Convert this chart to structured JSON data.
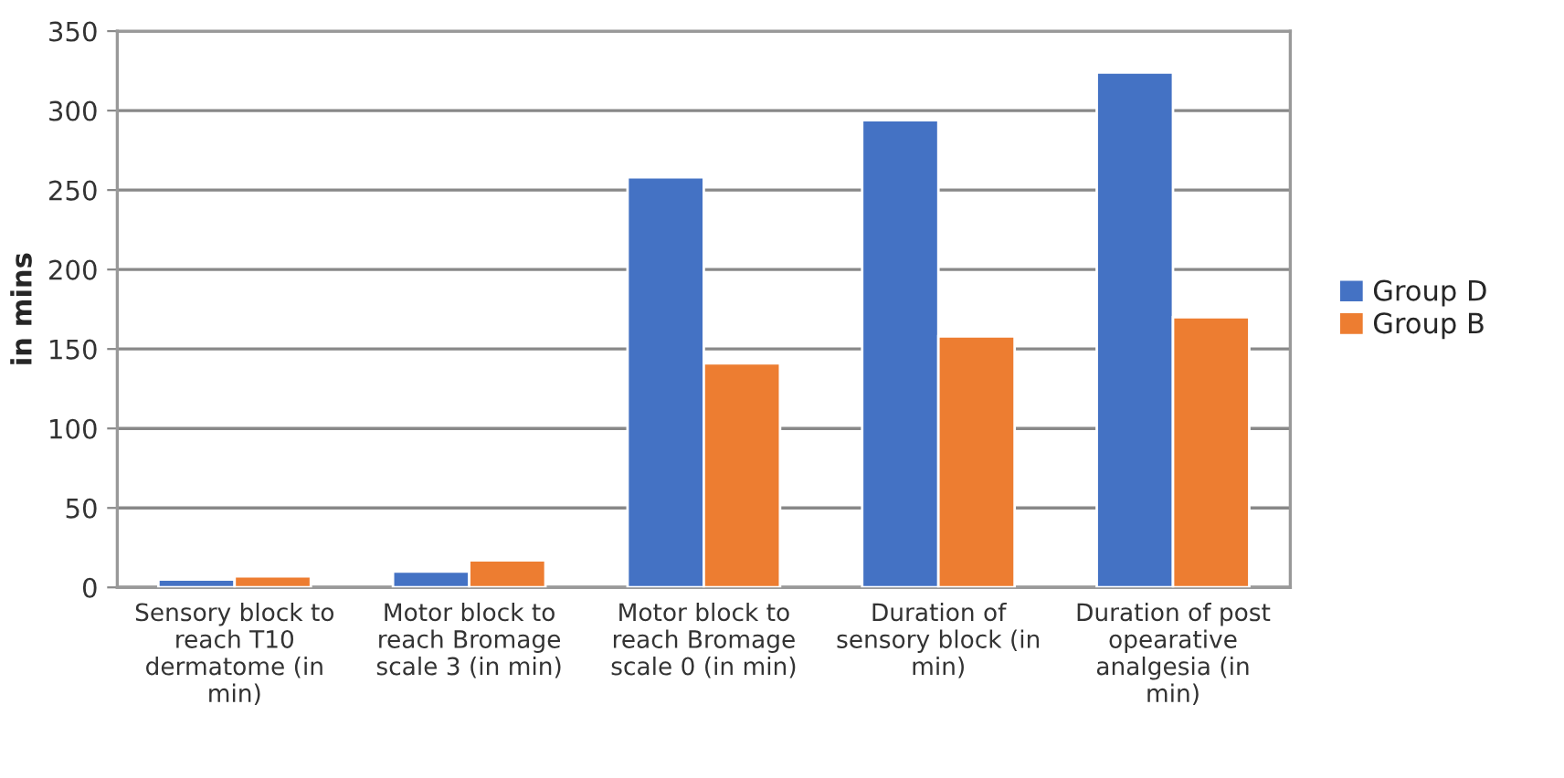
{
  "chart_data": {
    "type": "bar",
    "ylabel": "in mins",
    "categories": [
      "Sensory block to\nreach T10\ndermatome (in\nmin)",
      "Motor block to\nreach Bromage\nscale 3 (in min)",
      "Motor block to\nreach Bromage\nscale 0 (in min)",
      "Duration of\nsensory block (in\nmin)",
      "Duration of post\nopearative\nanalgesia (in\nmin)"
    ],
    "series": [
      {
        "name": "Group D",
        "color": "#4472c4",
        "values": [
          5,
          10,
          258,
          294,
          324
        ]
      },
      {
        "name": "Group B",
        "color": "#ed7d31",
        "values": [
          7,
          17,
          141,
          158,
          170
        ]
      }
    ],
    "ylim": [
      0,
      350
    ],
    "yticks": [
      0,
      50,
      100,
      150,
      200,
      250,
      300,
      350
    ],
    "grid": "y",
    "legend": "right"
  }
}
